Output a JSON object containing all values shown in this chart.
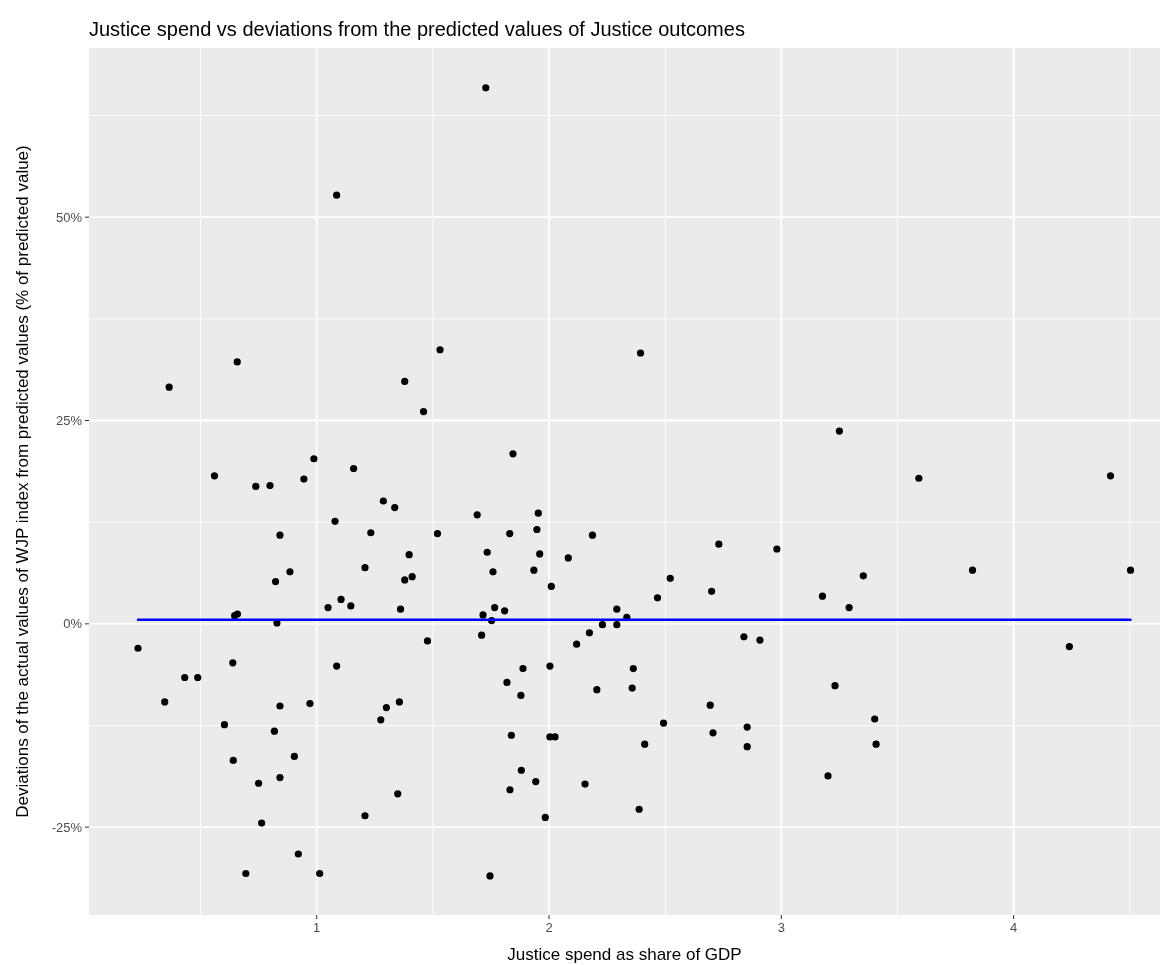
{
  "chart_data": {
    "type": "scatter",
    "title": "Justice spend vs deviations from the predicted values of Justice outcomes",
    "xlabel": "Justice spend as share of GDP",
    "ylabel": "Deviations of the actual values of WJP index from predicted values (% of predicted value)",
    "xlim": [
      0.02,
      4.63
    ],
    "xticks": [
      1,
      2,
      3,
      4
    ],
    "ylim": [
      -35.8,
      70.8
    ],
    "yticks": [
      {
        "value": -25,
        "label": "-25%"
      },
      {
        "value": 0,
        "label": "0%"
      },
      {
        "value": 25,
        "label": "25%"
      },
      {
        "value": 50,
        "label": "50%"
      }
    ],
    "grid": true,
    "marker": "circle",
    "series": [
      {
        "color": "#000000",
        "x": [
          1.728,
          1.086,
          1.531,
          0.658,
          2.394,
          0.365,
          1.379,
          1.46,
          3.25,
          1.845,
          0.988,
          1.159,
          0.56,
          3.592,
          4.417,
          0.738,
          0.799,
          0.945,
          1.287,
          1.336,
          1.079,
          0.842,
          1.233,
          1.52,
          1.398,
          1.208,
          0.885,
          0.823,
          1.379,
          1.411,
          1.105,
          1.049,
          1.147,
          1.361,
          0.647,
          0.659,
          0.829,
          0.231,
          1.477,
          0.639,
          1.086,
          0.432,
          0.488,
          0.346,
          0.842,
          0.971,
          1.356,
          1.3,
          1.276,
          0.603,
          0.818,
          0.904,
          0.641,
          0.842,
          0.75,
          1.349,
          0.763,
          1.208,
          0.921,
          0.695,
          1.013,
          1.691,
          1.954,
          1.831,
          1.948,
          2.187,
          1.734,
          1.96,
          2.083,
          1.759,
          1.935,
          2.01,
          2.731,
          2.981,
          2.522,
          2.7,
          2.467,
          1.766,
          1.809,
          1.716,
          1.753,
          2.292,
          2.335,
          2.23,
          2.292,
          1.71,
          2.174,
          2.119,
          2.839,
          2.908,
          1.888,
          2.004,
          2.363,
          1.819,
          1.879,
          2.206,
          2.358,
          2.694,
          2.493,
          2.706,
          2.853,
          2.853,
          1.838,
          2.004,
          2.026,
          2.412,
          1.881,
          1.943,
          1.832,
          2.155,
          1.984,
          2.388,
          1.746,
          3.177,
          3.292,
          3.353,
          3.823,
          4.503,
          4.24,
          3.231,
          3.402,
          3.408,
          3.201
        ],
        "values": [
          65.9,
          52.7,
          33.7,
          32.2,
          33.3,
          29.1,
          29.8,
          26.1,
          23.7,
          20.9,
          20.3,
          19.1,
          18.2,
          17.9,
          18.2,
          16.9,
          17.0,
          17.8,
          15.1,
          14.3,
          12.6,
          10.9,
          11.2,
          11.1,
          8.5,
          6.9,
          6.4,
          5.2,
          5.4,
          5.8,
          3.0,
          2.0,
          2.2,
          1.8,
          1.0,
          1.2,
          0.1,
          -3.0,
          -2.1,
          -4.8,
          -5.2,
          -6.6,
          -6.6,
          -9.6,
          -10.1,
          -9.8,
          -9.6,
          -10.3,
          -11.8,
          -12.4,
          -13.2,
          -16.3,
          -16.8,
          -18.9,
          -19.6,
          -20.9,
          -24.5,
          -23.6,
          -28.3,
          -30.7,
          -30.7,
          13.4,
          13.6,
          11.1,
          11.6,
          10.9,
          8.8,
          8.6,
          8.1,
          6.4,
          6.6,
          4.6,
          9.8,
          9.2,
          5.6,
          4.0,
          3.2,
          2.0,
          1.6,
          1.1,
          0.4,
          1.8,
          0.8,
          -0.1,
          -0.1,
          -1.4,
          -1.1,
          -2.5,
          -1.6,
          -2.0,
          -5.5,
          -5.2,
          -5.5,
          -7.2,
          -8.8,
          -8.1,
          -7.9,
          -10.0,
          -12.2,
          -13.4,
          -12.7,
          -15.1,
          -13.7,
          -13.9,
          -13.9,
          -14.8,
          -18.0,
          -19.4,
          -20.4,
          -19.7,
          -23.8,
          -22.8,
          -31.0,
          3.4,
          2.0,
          5.9,
          6.6,
          6.6,
          -2.8,
          -7.6,
          -11.7,
          -14.8,
          -18.7
        ]
      },
      {
        "type": "line",
        "color": "#0000ff",
        "x": [
          0.231,
          4.503
        ],
        "values": [
          0.5,
          0.5
        ],
        "line_style": "solid",
        "marker": "none"
      }
    ]
  }
}
